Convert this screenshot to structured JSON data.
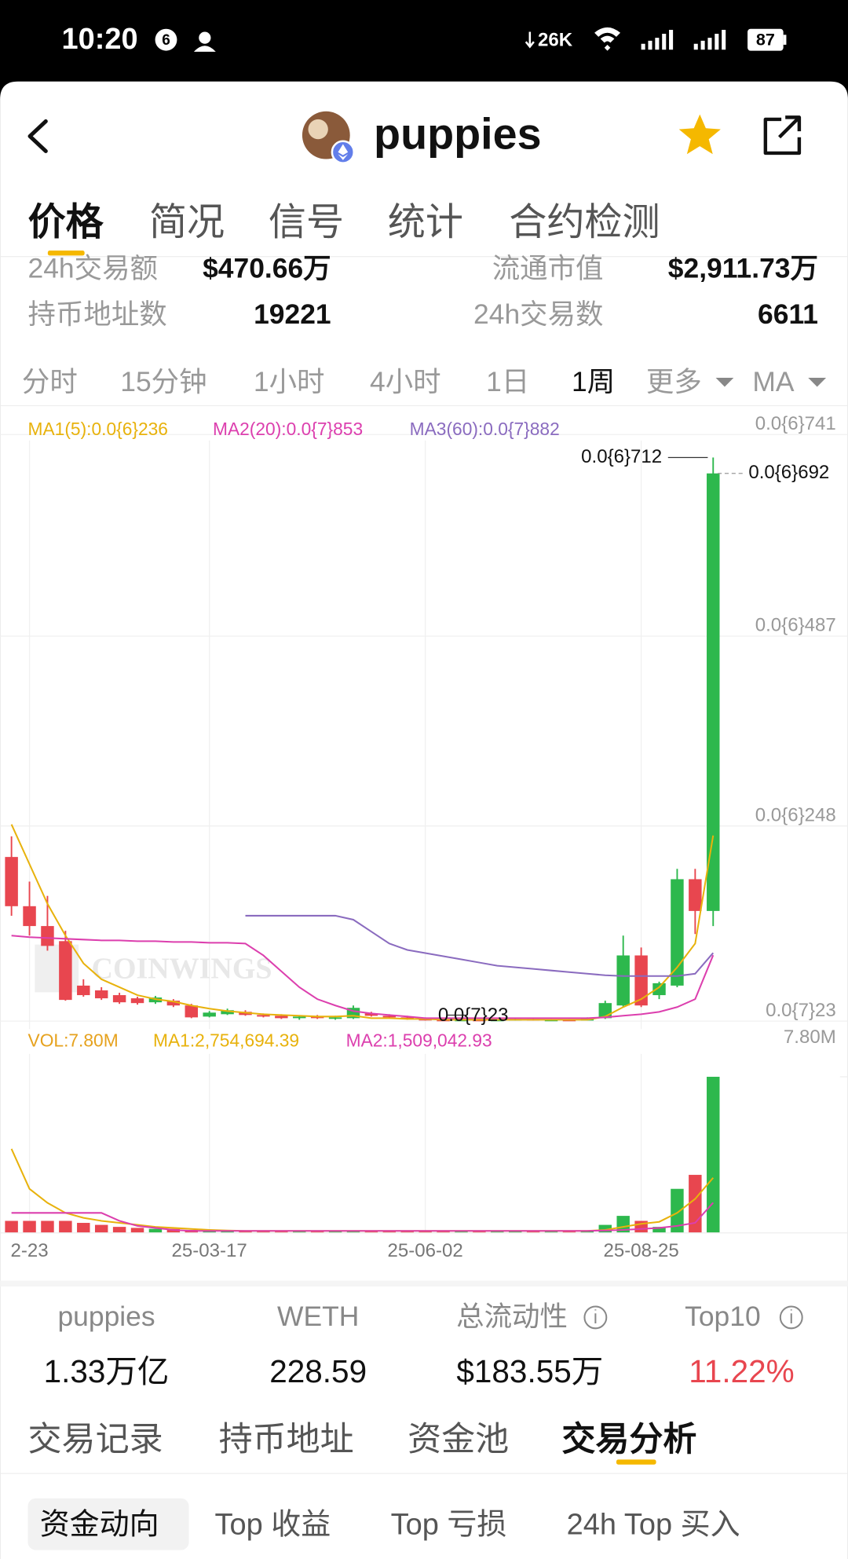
{
  "status_bar": {
    "time": "10:20",
    "badge": "6",
    "net_speed": "26K",
    "battery": "87"
  },
  "header": {
    "title": "puppies"
  },
  "tabs": {
    "items": [
      "价格",
      "简况",
      "信号",
      "统计",
      "合约检测"
    ],
    "active": 0
  },
  "stats": [
    {
      "label": "24h交易额",
      "value": "$470.66万"
    },
    {
      "label": "流通市值",
      "value": "$2,911.73万"
    },
    {
      "label": "持币地址数",
      "value": "19221"
    },
    {
      "label": "24h交易数",
      "value": "6611"
    }
  ],
  "timeframes": {
    "items": [
      "分时",
      "15分钟",
      "1小时",
      "4小时",
      "1日",
      "1周",
      "更多",
      "MA"
    ],
    "active": 5
  },
  "chart_data": [
    {
      "type": "candlestick",
      "watermark": "COINWINGS",
      "up_color": "#2db84d",
      "down_color": "#e8464f",
      "ylim": [
        2.3e-09,
        7.41e-07
      ],
      "yticks": [
        {
          "value": 7.41e-07,
          "label": "0.0{6}741"
        },
        {
          "value": 4.87e-07,
          "label": "0.0{6}487"
        },
        {
          "value": 2.48e-07,
          "label": "0.0{6}248"
        },
        {
          "value": 2.3e-09,
          "label": "0.0{7}23"
        }
      ],
      "grid": true,
      "open": [
        2.09e-07,
        1.47e-07,
        1.22e-07,
        1.03e-07,
        4.7e-08,
        4.1e-08,
        3.5e-08,
        3.1e-08,
        2.6e-08,
        2.8e-08,
        2.2e-08,
        8e-09,
        1.1e-08,
        1.4e-08,
        1e-08,
        9e-09,
        6e-09,
        8e-09,
        6e-09,
        6e-09,
        1.2e-08,
        9e-09,
        7e-09,
        5e-09,
        4e-09,
        3e-09,
        4e-09,
        3e-09,
        4e-09,
        5e-09,
        4e-09,
        4e-09,
        3e-09,
        6e-09,
        2.2e-08,
        8.5e-08,
        3.5e-08,
        4.7e-08,
        1.81e-07,
        1.41e-07
      ],
      "high": [
        2.35e-07,
        1.78e-07,
        1.6e-07,
        1.16e-07,
        5.5e-08,
        4.5e-08,
        3.8e-08,
        3.3e-08,
        3.4e-08,
        3e-08,
        2.4e-08,
        1.5e-08,
        1.8e-08,
        1.6e-08,
        1.2e-08,
        1.1e-08,
        9e-09,
        1e-08,
        9e-09,
        2.2e-08,
        1.4e-08,
        1.1e-08,
        9e-09,
        7e-09,
        6e-09,
        5e-09,
        5e-09,
        5e-09,
        6e-09,
        6e-09,
        5e-09,
        5e-09,
        7e-09,
        2.8e-08,
        1.1e-07,
        9.5e-08,
        5.2e-08,
        1.94e-07,
        1.94e-07,
        7.12e-07
      ],
      "low": [
        1.35e-07,
        1.1e-07,
        9.1e-08,
        2.8e-08,
        3.3e-08,
        2.9e-08,
        2.4e-08,
        2.3e-08,
        2.4e-08,
        2e-08,
        6e-09,
        7e-09,
        1e-08,
        9e-09,
        7e-09,
        5e-09,
        4e-09,
        5e-09,
        4e-09,
        5e-09,
        8e-09,
        6e-09,
        4e-09,
        3e-09,
        3e-09,
        3e-09,
        2.3e-09,
        3e-09,
        3e-09,
        3e-09,
        3e-09,
        3e-09,
        3e-09,
        5e-09,
        2e-08,
        2e-08,
        3e-08,
        4.5e-08,
        1.12e-07,
        1.22e-07
      ],
      "close": [
        1.47e-07,
        1.22e-07,
        9.7e-08,
        2.9e-08,
        3.5e-08,
        3.1e-08,
        2.6e-08,
        2.5e-08,
        3.2e-08,
        2.2e-08,
        7e-09,
        1.3e-08,
        1.6e-08,
        1e-08,
        8e-09,
        6e-09,
        8e-09,
        6e-09,
        7e-09,
        1.9e-08,
        9e-09,
        7e-09,
        5e-09,
        4e-09,
        3e-09,
        4e-09,
        3e-09,
        4e-09,
        5e-09,
        4e-09,
        4e-09,
        3e-09,
        6e-09,
        2.5e-08,
        8.5e-08,
        2.2e-08,
        5e-08,
        1.81e-07,
        1.41e-07,
        6.92e-07
      ],
      "series": [
        {
          "name": "MA1(5):0.0{6}236",
          "color": "#e8b20c",
          "values": [
            2.5e-07,
            2e-07,
            1.5e-07,
            1.1e-07,
            7.5e-08,
            5.5e-08,
            4.5e-08,
            3.5e-08,
            3e-08,
            2.7e-08,
            2.2e-08,
            1.8e-08,
            1.5e-08,
            1.3e-08,
            1.1e-08,
            1e-08,
            9e-09,
            8e-09,
            8e-09,
            9e-09,
            6e-09,
            6e-09,
            5e-09,
            5e-09,
            4e-09,
            4e-09,
            4e-09,
            4e-09,
            4e-09,
            4e-09,
            4e-09,
            4e-09,
            4e-09,
            8e-09,
            2e-08,
            3e-08,
            4.5e-08,
            7e-08,
            1e-07,
            2.36e-07
          ]
        },
        {
          "name": "MA2(20):0.0{7}853",
          "color": "#dc3fae",
          "values": [
            1.1e-07,
            1.08e-07,
            1.07e-07,
            1.06e-07,
            1.05e-07,
            1.04e-07,
            1.04e-07,
            1.03e-07,
            1.03e-07,
            1.02e-07,
            1.02e-07,
            1.01e-07,
            1.01e-07,
            1e-07,
            8.5e-08,
            6.5e-08,
            4.5e-08,
            3e-08,
            2.2e-08,
            1.5e-08,
            1.2e-08,
            1e-08,
            8e-09,
            6e-09,
            6e-09,
            6e-09,
            6e-09,
            6e-09,
            6e-09,
            6e-09,
            6e-09,
            6e-09,
            6e-09,
            7e-09,
            9e-09,
            1.1e-08,
            1.4e-08,
            2e-08,
            3e-08,
            8.53e-08
          ]
        },
        {
          "name": "MA3(60):0.0{7}882",
          "color": "#8a6bbf",
          "values": [
            null,
            null,
            null,
            null,
            null,
            null,
            null,
            null,
            null,
            null,
            null,
            null,
            null,
            1.35e-07,
            1.35e-07,
            1.35e-07,
            1.35e-07,
            1.35e-07,
            1.35e-07,
            1.3e-07,
            1.15e-07,
            1e-07,
            9.2e-08,
            8.8e-08,
            8.4e-08,
            8e-08,
            7.6e-08,
            7.2e-08,
            7e-08,
            6.8e-08,
            6.6e-08,
            6.4e-08,
            6.2e-08,
            6e-08,
            5.9e-08,
            5.9e-08,
            5.9e-08,
            5.9e-08,
            6.2e-08,
            8.82e-08
          ]
        }
      ],
      "annotations": [
        {
          "value": 7.12e-07,
          "label": "0.0{6}712"
        },
        {
          "value": 2.3e-09,
          "label": "0.0{7}23"
        }
      ],
      "last_price": {
        "value": 6.92e-07,
        "label": "0.0{6}692"
      }
    },
    {
      "type": "bar",
      "categories": [
        null,
        "2-23",
        null,
        null,
        null,
        null,
        null,
        null,
        null,
        null,
        null,
        "25-03-17",
        null,
        null,
        null,
        null,
        null,
        null,
        null,
        null,
        null,
        null,
        null,
        "25-06-02",
        null,
        null,
        null,
        null,
        null,
        null,
        null,
        null,
        null,
        null,
        null,
        "25-08-25",
        null,
        null,
        null,
        null
      ],
      "ylim": [
        0,
        7800000
      ],
      "yticks": [
        {
          "value": 7800000,
          "label": "7.80M"
        }
      ],
      "series": [
        {
          "name": "VOL:7.80M",
          "color": "#e6a21e",
          "values": [
            600000,
            600000,
            600000,
            600000,
            500000,
            400000,
            300000,
            250000,
            200000,
            200000,
            150000,
            100000,
            100000,
            100000,
            100000,
            100000,
            100000,
            100000,
            100000,
            120000,
            100000,
            100000,
            100000,
            100000,
            100000,
            100000,
            100000,
            100000,
            100000,
            100000,
            100000,
            100000,
            100000,
            400000,
            850000,
            600000,
            300000,
            2200000,
            2900000,
            7800000
          ]
        },
        {
          "name": "MA1:2,754,694.39",
          "color": "#e8b20c",
          "values": [
            4200000,
            2200000,
            1500000,
            1000000,
            750000,
            600000,
            500000,
            400000,
            300000,
            250000,
            200000,
            150000,
            120000,
            100000,
            100000,
            100000,
            100000,
            100000,
            100000,
            100000,
            100000,
            100000,
            100000,
            100000,
            100000,
            100000,
            100000,
            100000,
            100000,
            100000,
            100000,
            100000,
            100000,
            150000,
            300000,
            450000,
            550000,
            1000000,
            1700000,
            2754694.39
          ]
        },
        {
          "name": "MA2:1,509,042.93",
          "color": "#dc3fae",
          "values": [
            1000000,
            1000000,
            1000000,
            1000000,
            1000000,
            1000000,
            600000,
            350000,
            250000,
            150000,
            100000,
            100000,
            100000,
            100000,
            100000,
            100000,
            100000,
            100000,
            100000,
            100000,
            100000,
            100000,
            100000,
            100000,
            100000,
            100000,
            100000,
            100000,
            100000,
            100000,
            100000,
            100000,
            100000,
            120000,
            150000,
            200000,
            250000,
            350000,
            500000,
            1509042.93
          ]
        }
      ]
    }
  ],
  "pool": [
    {
      "label": "puppies",
      "value": "1.33万亿"
    },
    {
      "label": "WETH",
      "value": "228.59"
    },
    {
      "label": "总流动性",
      "value": "$183.55万",
      "info": true
    },
    {
      "label": "Top10",
      "value": "11.22%",
      "info": true,
      "color": "#e8464f"
    }
  ],
  "sub_tabs": {
    "items": [
      "交易记录",
      "持币地址",
      "资金池",
      "交易分析"
    ],
    "active": 3
  },
  "filters": {
    "items": [
      "资金动向",
      "Top 收益",
      "Top 亏损",
      "24h Top 买入"
    ],
    "active": 0
  }
}
